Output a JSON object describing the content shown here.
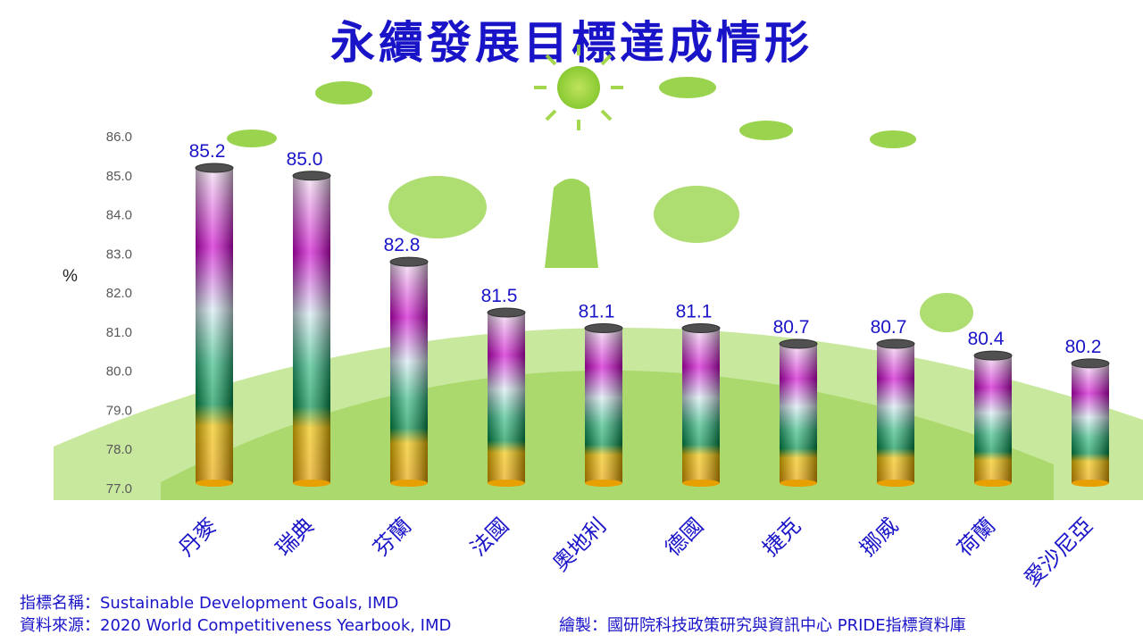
{
  "title": "永續發展目標達成情形",
  "footer": {
    "indicator": "指標名稱：Sustainable  Development  Goals, IMD",
    "source": "資料來源：2020 World Competitiveness Yearbook,  IMD",
    "credit": "繪製：國研院科技政策研究與資訊中心  PRIDE指標資料庫"
  },
  "chart_data": {
    "type": "bar",
    "title": "永續發展目標達成情形",
    "ylabel": "%",
    "xlabel": "",
    "ylim": [
      77.0,
      86.0
    ],
    "yticks": [
      "86.0",
      "85.0",
      "84.0",
      "83.0",
      "82.0",
      "81.0",
      "80.0",
      "79.0",
      "78.0",
      "77.0"
    ],
    "categories": [
      "丹麥",
      "瑞典",
      "芬蘭",
      "法國",
      "奧地利",
      "德國",
      "捷克",
      "挪威",
      "荷蘭",
      "愛沙尼亞"
    ],
    "values": [
      85.2,
      85.0,
      82.8,
      81.5,
      81.1,
      81.1,
      80.7,
      80.7,
      80.4,
      80.2
    ],
    "labels": [
      "85.2",
      "85.0",
      "82.8",
      "81.5",
      "81.1",
      "81.1",
      "80.7",
      "80.7",
      "80.4",
      "80.2"
    ],
    "grid": false,
    "legend": "none",
    "colors": {
      "label": "#1a14c8",
      "bar_top": "#cc00cc",
      "bar_mid": "#00a060",
      "bar_bottom": "#f0b400"
    }
  }
}
